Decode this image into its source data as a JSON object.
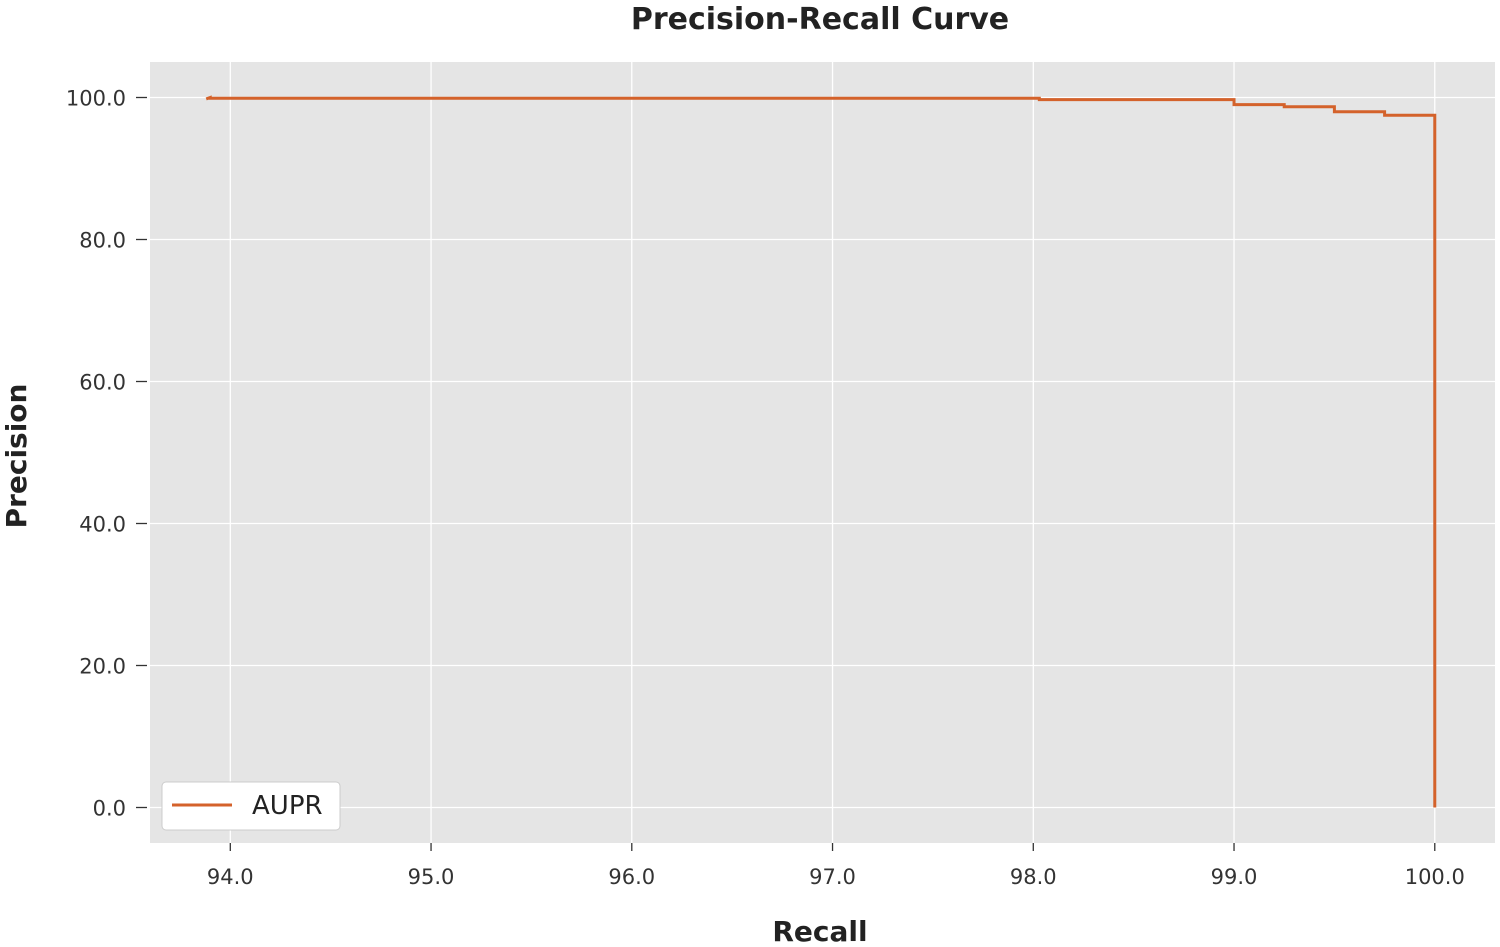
{
  "chart_data": {
    "type": "line",
    "title": "Precision-Recall Curve",
    "xlabel": "Recall",
    "ylabel": "Precision",
    "xlim": [
      93.6,
      100.3
    ],
    "ylim": [
      -5.0,
      105.0
    ],
    "x_ticks": [
      94.0,
      95.0,
      96.0,
      97.0,
      98.0,
      99.0,
      100.0
    ],
    "x_tick_labels": [
      "94.0",
      "95.0",
      "96.0",
      "97.0",
      "98.0",
      "99.0",
      "100.0"
    ],
    "y_ticks": [
      0.0,
      20.0,
      40.0,
      60.0,
      80.0,
      100.0
    ],
    "y_tick_labels": [
      "0.0",
      "20.0",
      "40.0",
      "60.0",
      "80.0",
      "100.0"
    ],
    "grid": true,
    "legend_position": "lower-left",
    "background_color": "#e5e5e5",
    "grid_color": "#ffffff",
    "series": [
      {
        "name": "AUPR",
        "color": "#d4622b",
        "line_style": "steps",
        "x": [
          93.88,
          93.9,
          93.9,
          98.03,
          98.03,
          99.0,
          99.0,
          99.25,
          99.25,
          99.5,
          99.5,
          99.75,
          99.75,
          100.0,
          100.0
        ],
        "y": [
          99.8,
          100.0,
          99.9,
          99.9,
          99.7,
          99.7,
          99.0,
          99.0,
          98.7,
          98.7,
          98.0,
          98.0,
          97.5,
          97.5,
          0.0
        ]
      }
    ]
  }
}
